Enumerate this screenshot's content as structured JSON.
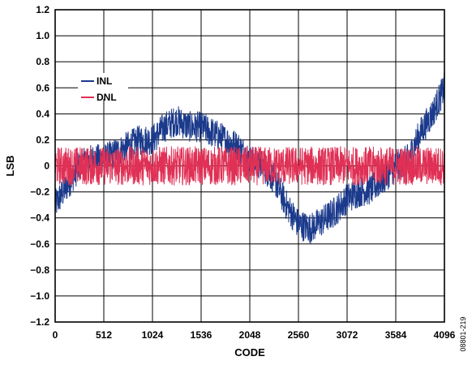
{
  "chart_data": {
    "type": "line",
    "xlabel": "CODE",
    "ylabel": "LSB",
    "xlim": [
      0,
      4096
    ],
    "ylim": [
      -1.2,
      1.2
    ],
    "x_ticks": [
      0,
      512,
      1024,
      1536,
      2048,
      2560,
      3072,
      3584,
      4096
    ],
    "x_tick_labels": [
      "0",
      "512",
      "1024",
      "1536",
      "2048",
      "2560",
      "3072",
      "3584",
      "4096"
    ],
    "y_ticks": [
      -1.2,
      -1.0,
      -0.8,
      -0.6,
      -0.4,
      -0.2,
      0,
      0.2,
      0.4,
      0.6,
      0.8,
      1.0,
      1.2
    ],
    "y_tick_labels": [
      "−1.2",
      "−1.0",
      "−0.8",
      "−0.6",
      "−0.4",
      "−0.2",
      "0",
      "0.2",
      "0.4",
      "0.6",
      "0.8",
      "1.0",
      "1.2"
    ],
    "grid": true,
    "legend_position": "upper-left",
    "series": [
      {
        "name": "INL",
        "color": "#1b3a8c",
        "x": [
          0,
          128,
          256,
          384,
          512,
          640,
          768,
          896,
          1024,
          1152,
          1280,
          1408,
          1536,
          1664,
          1792,
          1920,
          2048,
          2176,
          2304,
          2432,
          2560,
          2688,
          2816,
          2944,
          3072,
          3200,
          3328,
          3456,
          3584,
          3712,
          3840,
          3968,
          4096
        ],
        "y": [
          -0.3,
          -0.15,
          0,
          0.05,
          0.05,
          0.1,
          0.15,
          0.2,
          0.2,
          0.3,
          0.35,
          0.3,
          0.3,
          0.25,
          0.2,
          0.15,
          0.05,
          0,
          -0.1,
          -0.3,
          -0.45,
          -0.48,
          -0.42,
          -0.35,
          -0.25,
          -0.2,
          -0.18,
          -0.1,
          0,
          0.05,
          0.25,
          0.4,
          0.6
        ],
        "spread": 0.12
      },
      {
        "name": "DNL",
        "color": "#e03055",
        "x": [
          0,
          512,
          1024,
          1536,
          2048,
          2560,
          3072,
          3584,
          4096
        ],
        "y": [
          0,
          0,
          0,
          0,
          0,
          0,
          0,
          0,
          0
        ],
        "spread": 0.15
      }
    ]
  },
  "figure_id": "08801-219"
}
